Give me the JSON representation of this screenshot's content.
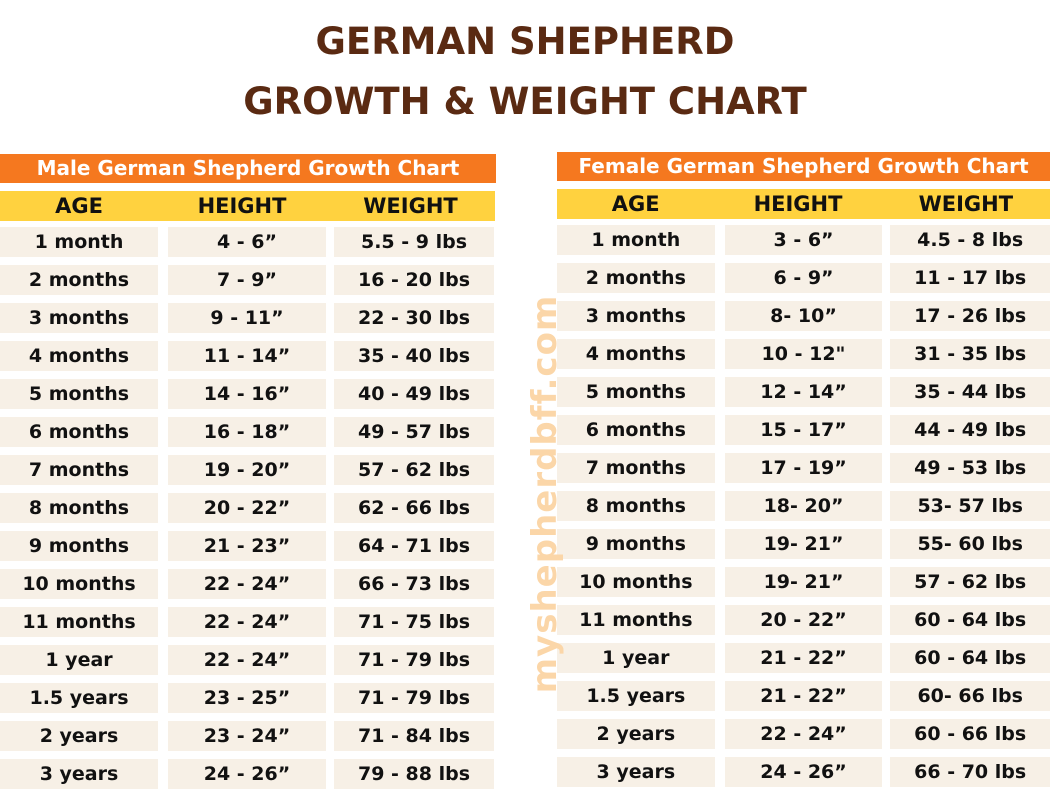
{
  "title_line1": "GERMAN SHEPHERD",
  "title_line2": "GROWTH & WEIGHT CHART",
  "watermark": "myshepherdbff.com",
  "colors": {
    "title": "#5a2a12",
    "table_title_bg": "#f5781f",
    "header_bg": "#ffd23f",
    "cell_bg": "#f7f0e6",
    "watermark": "#fbd6a8"
  },
  "chart_data": [
    {
      "type": "table",
      "title": "Male German Shepherd Growth Chart",
      "columns": [
        "AGE",
        "HEIGHT",
        "WEIGHT"
      ],
      "rows": [
        [
          "1 month",
          "4 - 6”",
          "5.5 - 9 lbs"
        ],
        [
          "2 months",
          "7 - 9”",
          "16 - 20 lbs"
        ],
        [
          "3 months",
          "9 - 11”",
          "22 - 30 lbs"
        ],
        [
          "4 months",
          "11 - 14”",
          "35 - 40 lbs"
        ],
        [
          "5 months",
          "14 - 16”",
          "40 - 49 lbs"
        ],
        [
          "6 months",
          "16 - 18”",
          "49 - 57 lbs"
        ],
        [
          "7 months",
          "19 - 20”",
          "57 - 62 lbs"
        ],
        [
          "8 months",
          "20 - 22”",
          "62 - 66 lbs"
        ],
        [
          "9 months",
          "21 - 23”",
          "64 - 71 lbs"
        ],
        [
          "10 months",
          "22 - 24”",
          "66 - 73 lbs"
        ],
        [
          "11 months",
          "22 - 24”",
          "71 - 75 lbs"
        ],
        [
          "1 year",
          "22 - 24”",
          "71 - 79 lbs"
        ],
        [
          "1.5 years",
          "23 - 25”",
          "71 - 79 lbs"
        ],
        [
          "2 years",
          "23 - 24”",
          "71 - 84 lbs"
        ],
        [
          "3 years",
          "24 - 26”",
          "79 - 88 lbs"
        ]
      ]
    },
    {
      "type": "table",
      "title": "Female German Shepherd Growth Chart",
      "columns": [
        "AGE",
        "HEIGHT",
        "WEIGHT"
      ],
      "rows": [
        [
          "1 month",
          "3 - 6”",
          "4.5 - 8 lbs"
        ],
        [
          "2 months",
          "6 - 9”",
          "11 - 17 lbs"
        ],
        [
          "3 months",
          "8- 10”",
          "17 - 26 lbs"
        ],
        [
          "4 months",
          "10 - 12\"",
          "31 - 35 lbs"
        ],
        [
          "5 months",
          "12 - 14”",
          "35 - 44 lbs"
        ],
        [
          "6 months",
          "15 - 17”",
          "44 - 49 lbs"
        ],
        [
          "7 months",
          "17 - 19”",
          "49 - 53 lbs"
        ],
        [
          "8 months",
          "18- 20”",
          "53- 57 lbs"
        ],
        [
          "9 months",
          "19- 21”",
          "55- 60 lbs"
        ],
        [
          "10 months",
          "19- 21”",
          "57 - 62 lbs"
        ],
        [
          "11 months",
          "20 - 22”",
          "60 - 64 lbs"
        ],
        [
          "1 year",
          "21 - 22”",
          "60 - 64 lbs"
        ],
        [
          "1.5 years",
          "21 - 22”",
          "60- 66 lbs"
        ],
        [
          "2 years",
          "22 - 24”",
          "60 - 66 lbs"
        ],
        [
          "3 years",
          "24 - 26”",
          "66 - 70 lbs"
        ]
      ]
    }
  ]
}
